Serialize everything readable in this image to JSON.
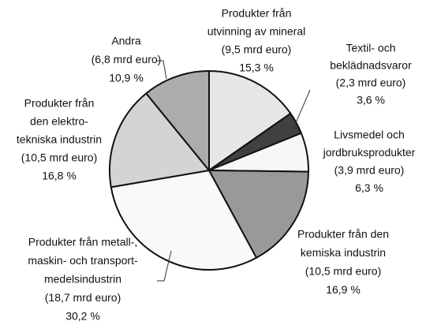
{
  "chart_data": {
    "type": "pie",
    "categories": [
      [
        "Produkter från",
        "utvinning av mineral"
      ],
      [
        "Textil- och",
        "beklädnadsvaror"
      ],
      [
        "Livsmedel och",
        "jordbruksprodukter"
      ],
      [
        "Produkter från den",
        "kemiska industrin"
      ],
      [
        "Produkter från metall-,",
        "maskin- och transport-",
        "medelsindustrin"
      ],
      [
        "Produkter från",
        "den elektro-",
        "tekniska industrin"
      ],
      [
        "Andra"
      ]
    ],
    "amount_labels": [
      "(9,5 mrd euro)",
      "(2,3 mrd euro)",
      "(3,9 mrd euro)",
      "(10,5 mrd euro)",
      "(18,7 mrd euro)",
      "(10,5 mrd euro)",
      "(6,8 mrd euro)"
    ],
    "values": [
      15.3,
      3.6,
      6.3,
      16.9,
      30.2,
      16.8,
      10.9
    ],
    "value_labels": [
      "15,3 %",
      "3,6 %",
      "6,3 %",
      "16,9 %",
      "30,2 %",
      "16,8 %",
      "10,9 %"
    ],
    "colors": [
      "#e6e6e6",
      "#404040",
      "#f7f7f7",
      "#999999",
      "#f9f9f9",
      "#d4d4d4",
      "#acacac"
    ]
  }
}
